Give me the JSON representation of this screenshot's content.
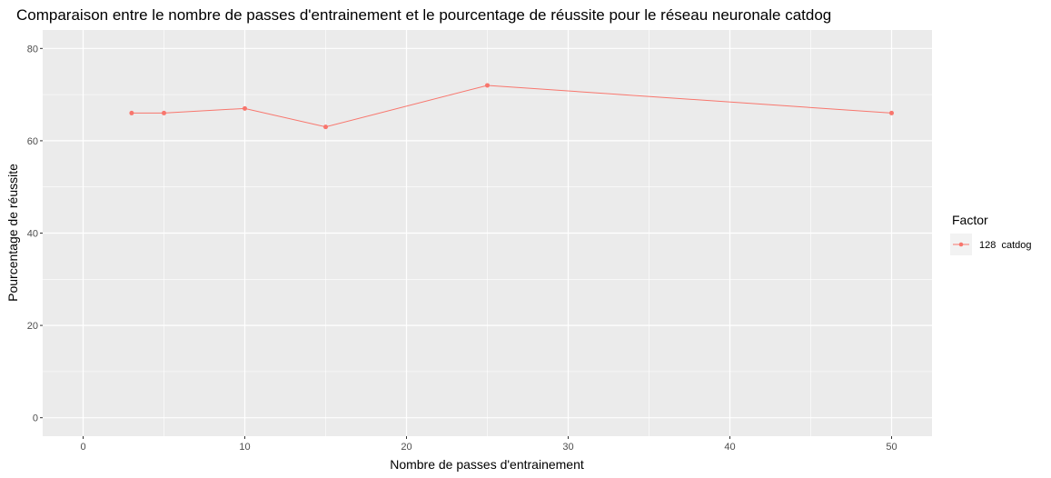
{
  "chart_data": {
    "type": "line",
    "title": "Comparaison entre le nombre de passes d'entrainement et le pourcentage de réussite pour le réseau neuronale catdog",
    "xlabel": "Nombre de passes d'entrainement",
    "ylabel": "Pourcentage de réussite",
    "xlim": [
      -2.5,
      52.5
    ],
    "ylim": [
      -4,
      84
    ],
    "x_ticks": [
      0,
      10,
      20,
      30,
      40,
      50
    ],
    "y_ticks": [
      0,
      20,
      40,
      60,
      80
    ],
    "grid": true,
    "legend": {
      "title": "Factor",
      "placement": "right"
    },
    "series": [
      {
        "name": "128  catdog",
        "color": "#f8766d",
        "x": [
          3,
          5,
          10,
          15,
          25,
          50
        ],
        "y": [
          66,
          66,
          67,
          63,
          72,
          66
        ]
      }
    ]
  }
}
